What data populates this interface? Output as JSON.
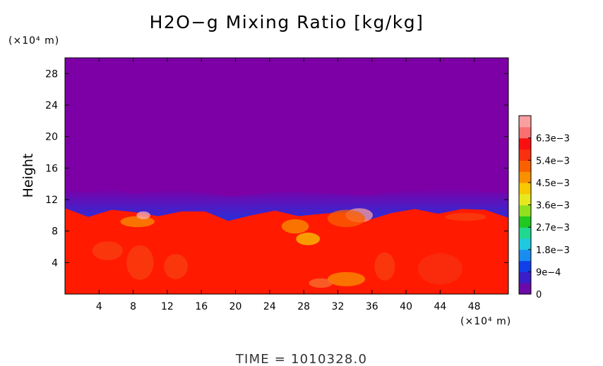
{
  "chart_data": {
    "type": "heatmap",
    "title": "H2O−g Mixing Ratio [kg/kg]",
    "y_unit_label": "(×10⁴ m)",
    "x_unit_label": "(×10⁴ m)",
    "ylabel": "Height",
    "xlabel": "",
    "xlim": [
      0,
      52
    ],
    "ylim": [
      0,
      30
    ],
    "x_ticks": [
      "4",
      "8",
      "12",
      "16",
      "20",
      "24",
      "28",
      "32",
      "36",
      "40",
      "44",
      "48"
    ],
    "y_ticks": [
      "4",
      "8",
      "12",
      "16",
      "20",
      "24",
      "28"
    ],
    "colorbar": {
      "labels": [
        "0",
        "9e−4",
        "1.8e−3",
        "2.7e−3",
        "3.6e−3",
        "4.5e−3",
        "5.4e−3",
        "6.3e−3"
      ],
      "values": [
        0,
        0.0009,
        0.0018,
        0.0027,
        0.0036,
        0.0045,
        0.0054,
        0.0063
      ],
      "max": 0.0072,
      "colors": [
        "#6a0aa8",
        "#3a1ec8",
        "#1040e8",
        "#1a8cf0",
        "#20c8e0",
        "#20d890",
        "#20c820",
        "#90e020",
        "#e8e820",
        "#f8c800",
        "#f89000",
        "#f86000",
        "#f83010",
        "#f81010",
        "#f87070",
        "#f8a0a0"
      ]
    },
    "field": {
      "upper_layer_color": "#7d00a7",
      "lower_layer_color": "#ff1a00",
      "moisture_top_height": [
        12.8,
        12.5,
        12.9,
        12.3,
        12.6,
        12.7,
        12.4,
        12.0,
        12.2,
        12.5,
        12.6,
        12.4,
        12.3,
        12.1,
        12.5,
        12.7,
        12.9,
        13.0,
        12.6,
        12.4
      ],
      "transition_band_depth": 2.4
    },
    "annotation": "TIME = 1010328.0"
  }
}
